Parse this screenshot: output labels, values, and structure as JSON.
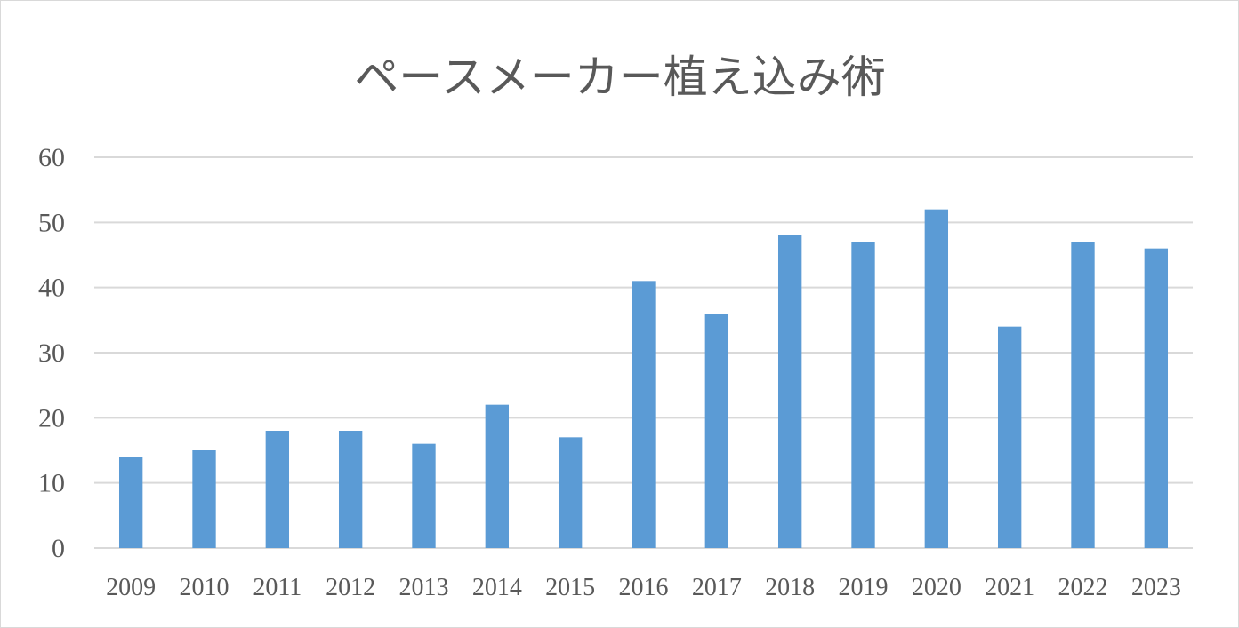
{
  "chart_data": {
    "type": "bar",
    "title": "ペースメーカー植え込み術",
    "categories": [
      "2009",
      "2010",
      "2011",
      "2012",
      "2013",
      "2014",
      "2015",
      "2016",
      "2017",
      "2018",
      "2019",
      "2020",
      "2021",
      "2022",
      "2023"
    ],
    "values": [
      14,
      15,
      18,
      18,
      16,
      22,
      17,
      41,
      36,
      48,
      47,
      52,
      34,
      47,
      46
    ],
    "ylim": [
      0,
      60
    ],
    "yticks": [
      0,
      10,
      20,
      30,
      40,
      50,
      60
    ],
    "grid": true,
    "legend": "none",
    "bar_color": "#5b9bd5"
  }
}
